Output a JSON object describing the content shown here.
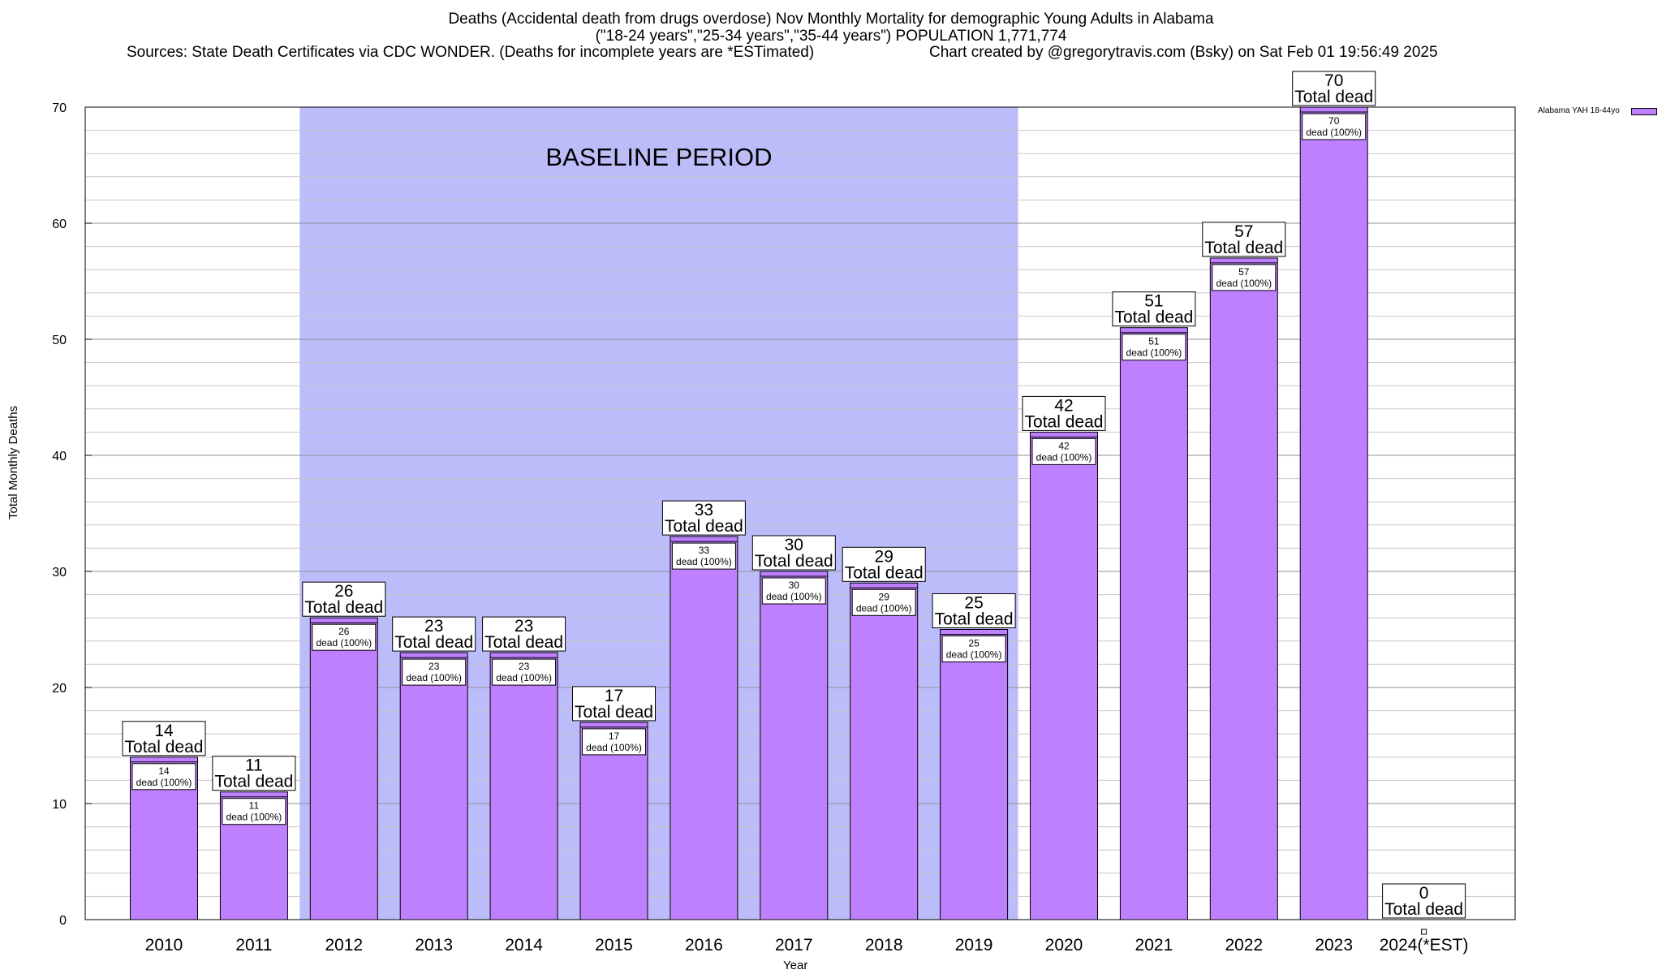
{
  "title": {
    "line1": "Deaths (Accidental death from drugs overdose) Nov Monthly Mortality for demographic Young Adults in Alabama",
    "line2": "(\"18-24 years\",\"25-34 years\",\"35-44 years\") POPULATION 1,771,774",
    "line3_left": "Sources: State Death Certificates via CDC WONDER. (Deaths for incomplete years are *ESTimated)",
    "line3_right": "Chart created by @gregorytravis.com (Bsky) on Sat Feb 01 19:56:49 2025"
  },
  "colors": {
    "bar": "#bf80ff",
    "baseline_shade": "#bcbcfb",
    "grid": "#a0a0a0"
  },
  "chart_data": {
    "type": "bar",
    "title": "Deaths (Accidental death from drugs overdose) Nov Monthly Mortality for demographic Young Adults in Alabama",
    "xlabel": "Year",
    "ylabel": "Total Monthly Deaths",
    "ylim": [
      0,
      70
    ],
    "yticks": [
      0,
      10,
      20,
      30,
      40,
      50,
      60,
      70
    ],
    "grid": true,
    "legend_position": "top-right",
    "categories": [
      "2010",
      "2011",
      "2012",
      "2013",
      "2014",
      "2015",
      "2016",
      "2017",
      "2018",
      "2019",
      "2020",
      "2021",
      "2022",
      "2023",
      "2024(*EST)"
    ],
    "series": [
      {
        "name": "Alabama YAH 18-44yo",
        "values": [
          14,
          11,
          26,
          23,
          23,
          17,
          33,
          30,
          29,
          25,
          42,
          51,
          57,
          70,
          0
        ]
      }
    ],
    "total_label": "Total dead",
    "inner_label_suffix": "dead (100%)",
    "shaded_region": {
      "label": "BASELINE PERIOD",
      "from_category": "2012",
      "to_category": "2019"
    }
  }
}
